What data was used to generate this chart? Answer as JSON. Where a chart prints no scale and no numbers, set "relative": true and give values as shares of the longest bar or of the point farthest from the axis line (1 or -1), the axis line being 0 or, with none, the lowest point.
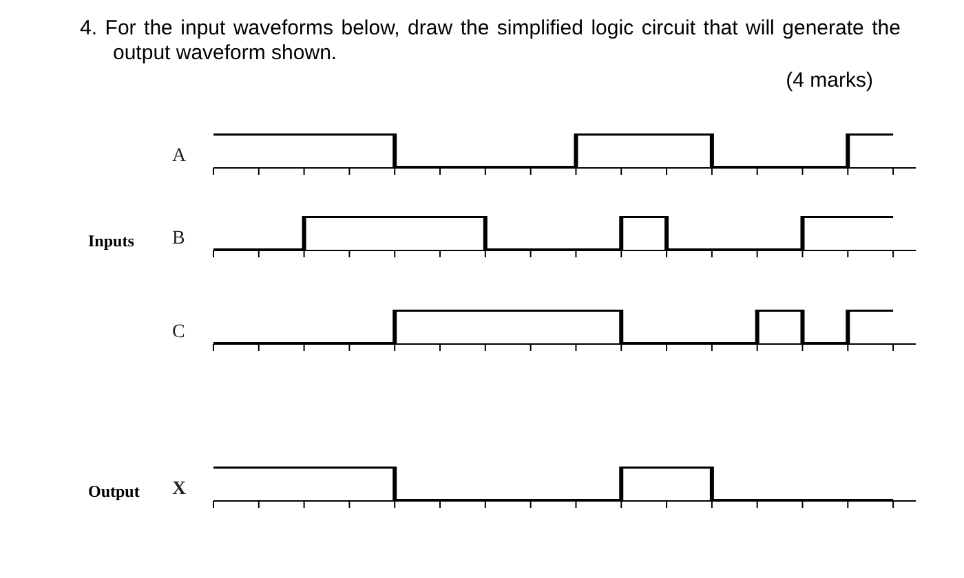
{
  "chart_data": [
    {
      "type": "step",
      "title": "4. For the input waveforms below, draw the simplified logic circuit that will generate the output waveform shown.",
      "annotations": [
        "(4 marks)"
      ],
      "relative": true,
      "categories": [
        null,
        null,
        null,
        null,
        null,
        null,
        null,
        null,
        null,
        null,
        null,
        null,
        null,
        null,
        null,
        null
      ],
      "marker": "none",
      "line_style": "solid",
      "series": [
        {
          "name": "A",
          "color": "#000000",
          "values": [
            1,
            1,
            1,
            1,
            0,
            0,
            0,
            0,
            1,
            1,
            1,
            0,
            0,
            0,
            1,
            1
          ]
        }
      ]
    },
    {
      "type": "step",
      "ylabel": "Inputs",
      "relative": true,
      "categories": [
        null,
        null,
        null,
        null,
        null,
        null,
        null,
        null,
        null,
        null,
        null,
        null,
        null,
        null,
        null,
        null
      ],
      "marker": "none",
      "line_style": "solid",
      "series": [
        {
          "name": "B",
          "color": "#000000",
          "values": [
            0,
            0,
            1,
            1,
            1,
            1,
            0,
            0,
            0,
            1,
            0,
            0,
            0,
            1,
            1,
            1
          ]
        }
      ]
    },
    {
      "type": "step",
      "relative": true,
      "categories": [
        null,
        null,
        null,
        null,
        null,
        null,
        null,
        null,
        null,
        null,
        null,
        null,
        null,
        null,
        null,
        null
      ],
      "marker": "none",
      "line_style": "solid",
      "series": [
        {
          "name": "C",
          "color": "#000000",
          "values": [
            0,
            0,
            0,
            0,
            1,
            1,
            1,
            1,
            1,
            0,
            0,
            0,
            1,
            0,
            1,
            1
          ]
        }
      ]
    },
    {
      "type": "step",
      "ylabel": "Output",
      "relative": true,
      "categories": [
        null,
        null,
        null,
        null,
        null,
        null,
        null,
        null,
        null,
        null,
        null,
        null,
        null,
        null,
        null,
        null
      ],
      "marker": "none",
      "line_style": "solid",
      "series": [
        {
          "name": "X",
          "color": "#000000",
          "values": [
            1,
            1,
            1,
            1,
            0,
            0,
            0,
            0,
            0,
            1,
            1,
            0,
            0,
            0,
            0,
            0
          ]
        }
      ]
    }
  ]
}
